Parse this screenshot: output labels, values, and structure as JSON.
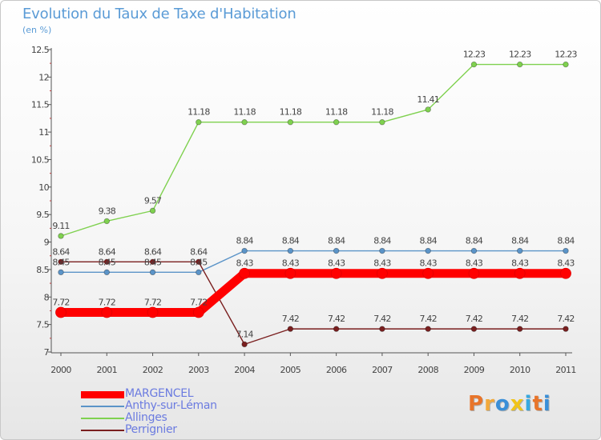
{
  "chart_data": {
    "type": "line",
    "title": "Evolution du Taux de Taxe d'Habitation",
    "subtitle": "(en %)",
    "x": [
      "2000",
      "2001",
      "2002",
      "2003",
      "2004",
      "2005",
      "2006",
      "2007",
      "2008",
      "2009",
      "2010",
      "2011"
    ],
    "ylim": [
      7,
      12.5
    ],
    "yticks": [
      "7",
      "7.5",
      "8",
      "8.5",
      "9",
      "9.5",
      "10",
      "10.5",
      "11",
      "11.5",
      "12",
      "12.5"
    ],
    "grid": false,
    "legend_position": "bottom-left",
    "series": [
      {
        "name": "MARGENCEL",
        "color": "#ff0000",
        "values": [
          7.72,
          7.72,
          7.72,
          7.72,
          8.43,
          8.43,
          8.43,
          8.43,
          8.43,
          8.43,
          8.43,
          8.43
        ],
        "labels": [
          "7.72",
          "7.72",
          "7.72",
          "7.72",
          "8.43",
          "8.43",
          "8.43",
          "8.43",
          "8.43",
          "8.43",
          "8.43",
          "8.43"
        ]
      },
      {
        "name": "Anthy-sur-Léman",
        "color": "#5b94c8",
        "values": [
          8.45,
          8.45,
          8.45,
          8.45,
          8.84,
          8.84,
          8.84,
          8.84,
          8.84,
          8.84,
          8.84,
          8.84
        ],
        "labels": [
          "8.45",
          "8.45",
          "8.45",
          "8.45",
          "8.84",
          "8.84",
          "8.84",
          "8.84",
          "8.84",
          "8.84",
          "8.84",
          "8.84"
        ]
      },
      {
        "name": "Allinges",
        "color": "#7fd14f",
        "values": [
          9.11,
          9.38,
          9.57,
          11.18,
          11.18,
          11.18,
          11.18,
          11.18,
          11.41,
          12.23,
          12.23,
          12.23
        ],
        "labels": [
          "9.11",
          "9.38",
          "9.57",
          "11.18",
          "11.18",
          "11.18",
          "11.18",
          "11.18",
          "11.41",
          "12.23",
          "12.23",
          "12.23"
        ]
      },
      {
        "name": "Perrignier",
        "color": "#7a1f1f",
        "values": [
          8.64,
          8.64,
          8.64,
          8.64,
          7.14,
          7.42,
          7.42,
          7.42,
          7.42,
          7.42,
          7.42,
          7.42
        ],
        "labels": [
          "8.64",
          "8.64",
          "8.64",
          "8.64",
          "7.14",
          "7.42",
          "7.42",
          "7.42",
          "7.42",
          "7.42",
          "7.42",
          "7.42"
        ]
      }
    ]
  },
  "logo": {
    "text": "Proxiti",
    "colors": [
      "#e8742a",
      "#f2a93b",
      "#3a8fd8",
      "#f0c419",
      "#37a9e0",
      "#e8742a",
      "#3a8fd8"
    ]
  }
}
